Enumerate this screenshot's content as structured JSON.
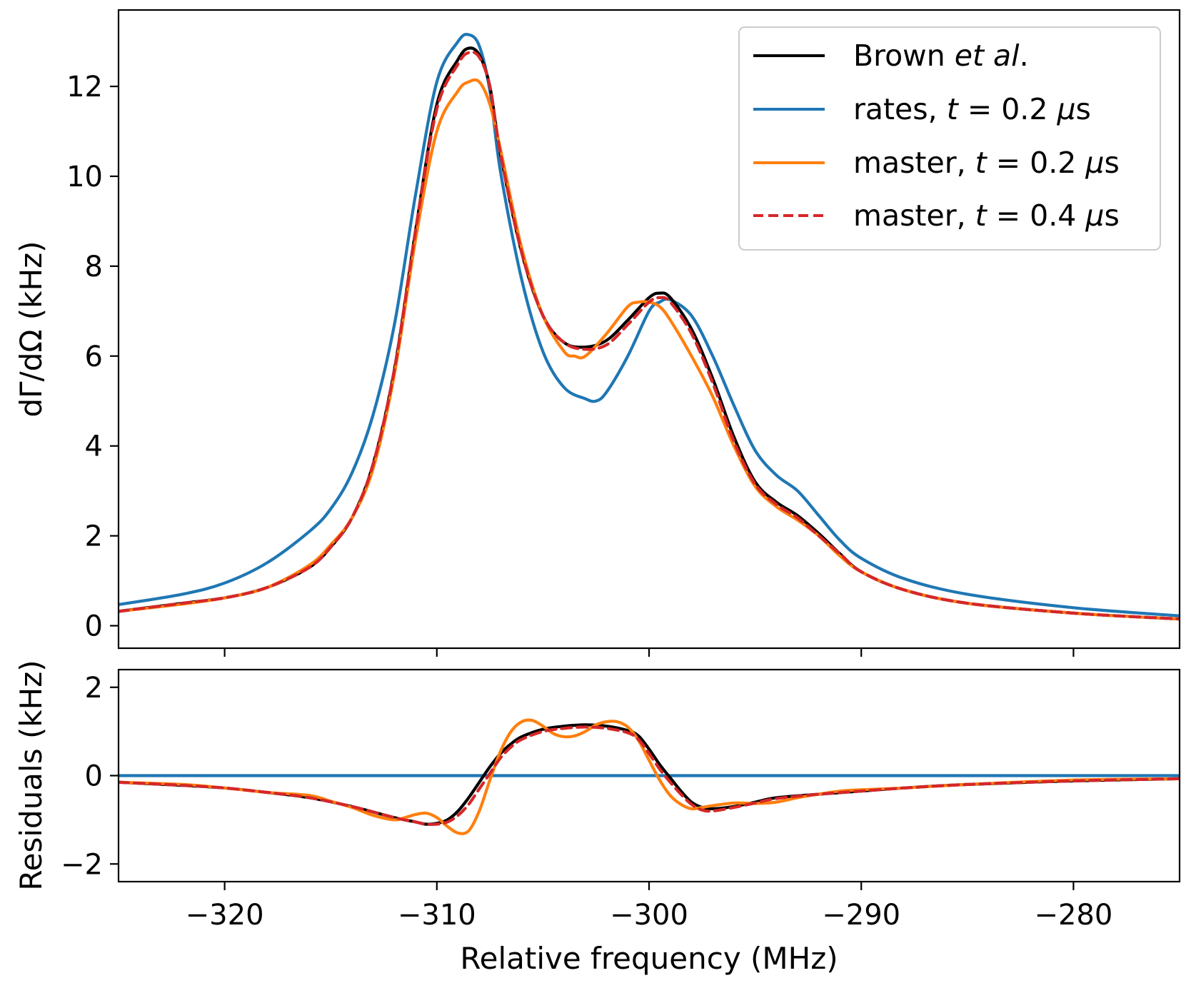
{
  "chart_data": [
    {
      "type": "line",
      "panel": "top",
      "xlabel": "",
      "ylabel": "dΓ/dΩ (kHz)",
      "xlim": [
        -325,
        -275
      ],
      "ylim": [
        -0.5,
        13.7
      ],
      "yticks": [
        0,
        2,
        4,
        6,
        8,
        10,
        12
      ],
      "ytick_labels": [
        "0",
        "2",
        "4",
        "6",
        "8",
        "10",
        "12"
      ],
      "legend": {
        "position": "top-right",
        "entries": [
          {
            "label_parts": [
              "Brown ",
              "et al",
              "."
            ],
            "color": "#000000",
            "dash": "solid"
          },
          {
            "label_parts": [
              "rates, ",
              "t",
              " = 0.2 ",
              "μ",
              "s"
            ],
            "color": "#1f77b4",
            "dash": "solid"
          },
          {
            "label_parts": [
              "master, ",
              "t",
              " = 0.2 ",
              "μ",
              "s"
            ],
            "color": "#ff7f0e",
            "dash": "solid"
          },
          {
            "label_parts": [
              "master, ",
              "t",
              " = 0.4 ",
              "μ",
              "s"
            ],
            "color": "#d62728",
            "dash": "dashed"
          }
        ]
      },
      "series": [
        {
          "name": "Brown et al.",
          "color": "#000000",
          "x": [
            -325,
            -322,
            -320,
            -318,
            -316,
            -315,
            -314,
            -313,
            -312,
            -311,
            -310,
            -309,
            -308.5,
            -308,
            -307.5,
            -307,
            -306,
            -305,
            -304,
            -303,
            -302,
            -301,
            -300,
            -299.5,
            -299,
            -298,
            -297,
            -296,
            -295,
            -294,
            -293,
            -292,
            -291,
            -290,
            -288,
            -285,
            -280,
            -275
          ],
          "y": [
            0.32,
            0.5,
            0.62,
            0.85,
            1.3,
            1.75,
            2.4,
            3.6,
            5.7,
            8.8,
            11.6,
            12.6,
            12.85,
            12.7,
            12.0,
            10.5,
            8.3,
            6.9,
            6.3,
            6.2,
            6.35,
            6.8,
            7.3,
            7.4,
            7.3,
            6.6,
            5.5,
            4.2,
            3.2,
            2.75,
            2.45,
            2.05,
            1.6,
            1.2,
            0.8,
            0.5,
            0.28,
            0.15
          ]
        },
        {
          "name": "rates, t = 0.2 μs",
          "color": "#1f77b4",
          "x": [
            -325,
            -322,
            -320,
            -318,
            -316,
            -315,
            -314,
            -313,
            -312,
            -311,
            -310,
            -309,
            -308.5,
            -308,
            -307.5,
            -307,
            -306,
            -305,
            -304,
            -303,
            -302.5,
            -302,
            -301,
            -300,
            -299.5,
            -299,
            -298,
            -297,
            -296,
            -295,
            -294,
            -293,
            -292,
            -291,
            -290,
            -288,
            -285,
            -280,
            -275
          ],
          "y": [
            0.47,
            0.7,
            0.95,
            1.4,
            2.1,
            2.6,
            3.4,
            4.7,
            6.7,
            9.6,
            12.1,
            13.0,
            13.15,
            12.9,
            11.9,
            10.1,
            7.7,
            6.1,
            5.3,
            5.05,
            5.0,
            5.2,
            6.0,
            7.0,
            7.2,
            7.25,
            6.9,
            6.0,
            4.9,
            3.9,
            3.35,
            3.0,
            2.45,
            1.9,
            1.5,
            1.05,
            0.7,
            0.4,
            0.22
          ]
        },
        {
          "name": "master, t = 0.2 μs",
          "color": "#ff7f0e",
          "x": [
            -325,
            -322,
            -320,
            -318,
            -316,
            -315,
            -314,
            -313,
            -312,
            -311,
            -310,
            -309,
            -308.5,
            -308,
            -307.5,
            -307,
            -306,
            -305,
            -304,
            -303.5,
            -303,
            -302,
            -301,
            -300.5,
            -300,
            -299.5,
            -299,
            -298,
            -297,
            -296,
            -295,
            -294,
            -293,
            -292,
            -291,
            -290,
            -288,
            -285,
            -280,
            -275
          ],
          "y": [
            0.32,
            0.48,
            0.62,
            0.85,
            1.35,
            1.8,
            2.4,
            3.5,
            5.6,
            8.6,
            11.0,
            11.9,
            12.1,
            12.1,
            11.6,
            10.6,
            8.4,
            6.9,
            6.1,
            6.0,
            6.0,
            6.5,
            7.1,
            7.2,
            7.2,
            7.1,
            6.8,
            6.0,
            5.1,
            4.0,
            3.1,
            2.65,
            2.35,
            2.0,
            1.55,
            1.2,
            0.8,
            0.5,
            0.28,
            0.15
          ]
        },
        {
          "name": "master, t = 0.4 μs",
          "color": "#d62728",
          "dash": "dashed",
          "x": [
            -325,
            -322,
            -320,
            -318,
            -316,
            -315,
            -314,
            -313,
            -312,
            -311,
            -310,
            -309,
            -308.5,
            -308,
            -307.5,
            -307,
            -306,
            -305,
            -304,
            -303,
            -302,
            -301,
            -300,
            -299.5,
            -299,
            -298,
            -297,
            -296,
            -295,
            -294,
            -293,
            -292,
            -291,
            -290,
            -288,
            -285,
            -280,
            -275
          ],
          "y": [
            0.32,
            0.5,
            0.62,
            0.85,
            1.3,
            1.75,
            2.4,
            3.6,
            5.7,
            8.8,
            11.5,
            12.5,
            12.75,
            12.65,
            12.0,
            10.5,
            8.3,
            6.9,
            6.3,
            6.15,
            6.25,
            6.7,
            7.2,
            7.3,
            7.2,
            6.5,
            5.4,
            4.1,
            3.15,
            2.7,
            2.4,
            2.0,
            1.6,
            1.2,
            0.8,
            0.5,
            0.28,
            0.15
          ]
        }
      ]
    },
    {
      "type": "line",
      "panel": "bottom",
      "xlabel": "Relative frequency (MHz)",
      "ylabel": "Residuals (kHz)",
      "xlim": [
        -325,
        -275
      ],
      "ylim": [
        -2.4,
        2.4
      ],
      "xticks": [
        -320,
        -310,
        -300,
        -290,
        -280
      ],
      "xtick_labels": [
        "−320",
        "−310",
        "−300",
        "−290",
        "−280"
      ],
      "yticks": [
        -2,
        0,
        2
      ],
      "ytick_labels": [
        "−2",
        "0",
        "2"
      ],
      "series": [
        {
          "name": "Brown et al.",
          "color": "#000000",
          "x": [
            -325,
            -322,
            -320,
            -318,
            -316,
            -314,
            -312,
            -311,
            -310.5,
            -310,
            -309.5,
            -309,
            -308.5,
            -308,
            -307.5,
            -307,
            -306.5,
            -306,
            -305,
            -304,
            -303,
            -302,
            -301,
            -300.5,
            -300,
            -299.5,
            -299,
            -298.5,
            -298,
            -297.5,
            -297,
            -296,
            -295,
            -294,
            -292,
            -290,
            -288,
            -285,
            -280,
            -275
          ],
          "y": [
            -0.15,
            -0.22,
            -0.28,
            -0.38,
            -0.5,
            -0.7,
            -0.95,
            -1.05,
            -1.1,
            -1.08,
            -1.0,
            -0.8,
            -0.5,
            -0.15,
            0.2,
            0.5,
            0.72,
            0.88,
            1.05,
            1.12,
            1.15,
            1.12,
            1.02,
            0.9,
            0.6,
            0.25,
            -0.05,
            -0.35,
            -0.6,
            -0.72,
            -0.75,
            -0.7,
            -0.6,
            -0.5,
            -0.42,
            -0.35,
            -0.28,
            -0.2,
            -0.12,
            -0.07
          ]
        },
        {
          "name": "rates, t = 0.2 μs",
          "color": "#1f77b4",
          "x": [
            -325,
            -275
          ],
          "y": [
            0,
            0
          ]
        },
        {
          "name": "master, t = 0.2 μs",
          "color": "#ff7f0e",
          "x": [
            -325,
            -322,
            -320,
            -318,
            -316,
            -315,
            -314,
            -313,
            -312,
            -311.5,
            -311,
            -310.5,
            -310,
            -309.5,
            -309,
            -308.5,
            -308,
            -307.5,
            -307,
            -306.5,
            -306,
            -305.5,
            -305,
            -304.5,
            -304,
            -303.5,
            -303,
            -302.5,
            -302,
            -301.5,
            -301,
            -300.5,
            -300,
            -299.5,
            -299,
            -298.5,
            -298,
            -297.5,
            -297,
            -296,
            -295,
            -294,
            -293,
            -292,
            -291,
            -290,
            -288,
            -285,
            -280,
            -275
          ],
          "y": [
            -0.15,
            -0.2,
            -0.28,
            -0.38,
            -0.45,
            -0.58,
            -0.72,
            -0.9,
            -1.0,
            -0.95,
            -0.88,
            -0.85,
            -0.95,
            -1.15,
            -1.3,
            -1.25,
            -0.8,
            -0.1,
            0.55,
            1.0,
            1.22,
            1.25,
            1.12,
            0.95,
            0.88,
            0.9,
            1.0,
            1.15,
            1.22,
            1.22,
            1.1,
            0.8,
            0.35,
            -0.1,
            -0.45,
            -0.65,
            -0.75,
            -0.72,
            -0.68,
            -0.62,
            -0.63,
            -0.6,
            -0.5,
            -0.42,
            -0.35,
            -0.32,
            -0.28,
            -0.2,
            -0.1,
            -0.07
          ]
        },
        {
          "name": "master, t = 0.4 μs",
          "color": "#d62728",
          "dash": "dashed",
          "x": [
            -325,
            -322,
            -320,
            -318,
            -316,
            -314,
            -312,
            -311,
            -310.5,
            -310,
            -309.5,
            -309,
            -308.5,
            -308,
            -307.5,
            -307,
            -306.5,
            -306,
            -305,
            -304,
            -303,
            -302,
            -301,
            -300.5,
            -300,
            -299.5,
            -299,
            -298.5,
            -298,
            -297.5,
            -297,
            -296,
            -295,
            -294,
            -292,
            -290,
            -288,
            -285,
            -280,
            -275
          ],
          "y": [
            -0.15,
            -0.22,
            -0.28,
            -0.38,
            -0.5,
            -0.7,
            -0.95,
            -1.05,
            -1.1,
            -1.1,
            -1.05,
            -0.9,
            -0.65,
            -0.3,
            0.05,
            0.4,
            0.65,
            0.82,
            1.0,
            1.07,
            1.1,
            1.07,
            0.97,
            0.82,
            0.5,
            0.15,
            -0.15,
            -0.42,
            -0.65,
            -0.78,
            -0.8,
            -0.72,
            -0.62,
            -0.52,
            -0.42,
            -0.35,
            -0.28,
            -0.2,
            -0.12,
            -0.07
          ]
        }
      ]
    }
  ]
}
